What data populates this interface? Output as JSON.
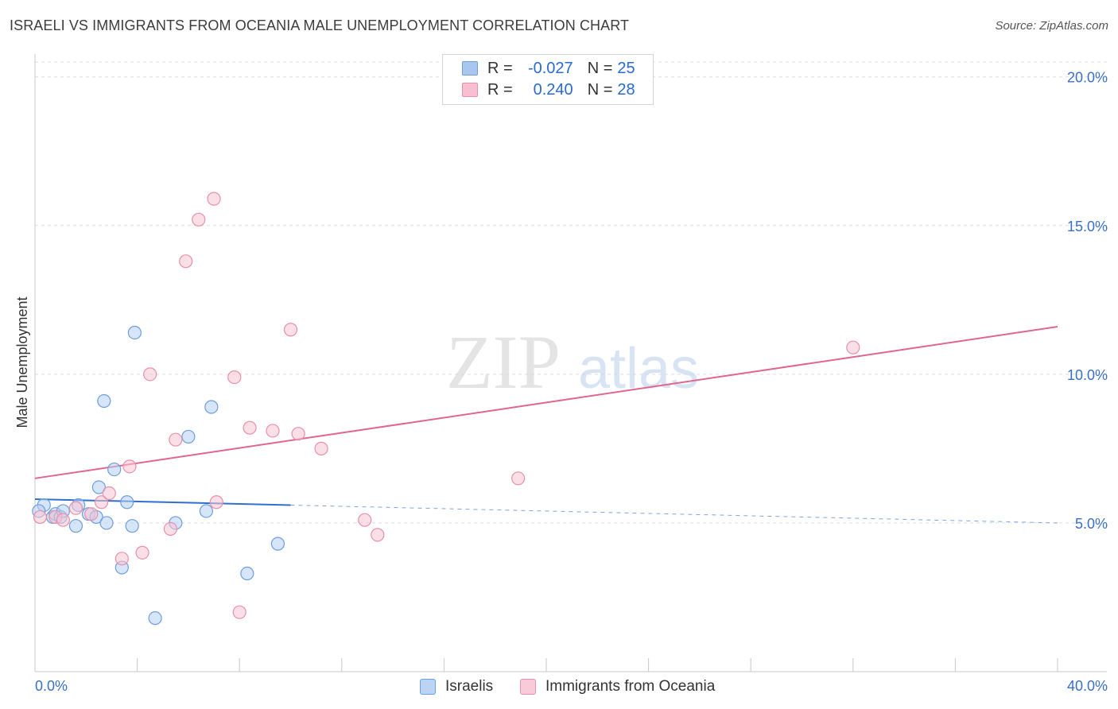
{
  "title": "ISRAELI VS IMMIGRANTS FROM OCEANIA MALE UNEMPLOYMENT CORRELATION CHART",
  "source": "Source: ZipAtlas.com",
  "watermark": {
    "zip": "ZIP",
    "atlas": "atlas"
  },
  "legend": {
    "r_label": "R =",
    "n_label": "N =",
    "rows": [
      {
        "r": "-0.027",
        "n": "25",
        "color": "#a8c6f0",
        "border": "#6d9ee0"
      },
      {
        "r": "0.240",
        "n": "28",
        "color": "#f8bfd0",
        "border": "#e890aa"
      }
    ]
  },
  "bottom_legend": [
    {
      "label": "Israelis",
      "color": "#bcd4f3",
      "border": "#6d9ee0"
    },
    {
      "label": "Immigrants from Oceania",
      "color": "#f9cbd9",
      "border": "#e890aa"
    }
  ],
  "chart_data": {
    "type": "scatter",
    "title": "ISRAELI VS IMMIGRANTS FROM OCEANIA MALE UNEMPLOYMENT CORRELATION CHART",
    "xlabel": "",
    "ylabel": "Male Unemployment",
    "xlim": [
      0,
      40
    ],
    "ylim": [
      0,
      20.5
    ],
    "x_ticks": [
      {
        "value": 0,
        "label": "0.0%"
      },
      {
        "value": 40,
        "label": "40.0%"
      }
    ],
    "y_ticks": [
      {
        "value": 5,
        "label": "5.0%"
      },
      {
        "value": 10,
        "label": "10.0%"
      },
      {
        "value": 15,
        "label": "15.0%"
      },
      {
        "value": 20,
        "label": "20.0%"
      }
    ],
    "grid": true,
    "series": [
      {
        "name": "Israelis",
        "color": "#6d9ee0",
        "fill": "#b7d0f2",
        "points": [
          [
            0.35,
            5.6
          ],
          [
            0.7,
            5.2
          ],
          [
            0.8,
            5.3
          ],
          [
            1.0,
            5.2
          ],
          [
            1.1,
            5.4
          ],
          [
            1.6,
            4.9
          ],
          [
            1.7,
            5.6
          ],
          [
            2.1,
            5.3
          ],
          [
            2.4,
            5.2
          ],
          [
            2.5,
            6.2
          ],
          [
            2.7,
            9.1
          ],
          [
            2.8,
            5.0
          ],
          [
            3.1,
            6.8
          ],
          [
            3.4,
            3.5
          ],
          [
            3.6,
            5.7
          ],
          [
            3.8,
            4.9
          ],
          [
            3.9,
            11.4
          ],
          [
            4.7,
            1.8
          ],
          [
            5.5,
            5.0
          ],
          [
            6.0,
            7.9
          ],
          [
            6.7,
            5.4
          ],
          [
            6.9,
            8.9
          ],
          [
            8.3,
            3.3
          ],
          [
            9.5,
            4.3
          ],
          [
            0.15,
            5.4
          ]
        ],
        "trend": {
          "x0": 0,
          "y0": 5.8,
          "x1": 10,
          "y1": 5.6,
          "dash_to_x": 40,
          "dash_to_y": 5.0
        }
      },
      {
        "name": "Immigrants from Oceania",
        "color": "#e890aa",
        "fill": "#f8c4d3",
        "points": [
          [
            0.2,
            5.2
          ],
          [
            0.8,
            5.2
          ],
          [
            1.1,
            5.1
          ],
          [
            1.6,
            5.5
          ],
          [
            2.2,
            5.3
          ],
          [
            2.6,
            5.7
          ],
          [
            2.9,
            6.0
          ],
          [
            3.4,
            3.8
          ],
          [
            3.7,
            6.9
          ],
          [
            4.2,
            4.0
          ],
          [
            4.5,
            10.0
          ],
          [
            5.3,
            4.8
          ],
          [
            5.5,
            7.8
          ],
          [
            5.9,
            13.8
          ],
          [
            6.4,
            15.2
          ],
          [
            7.0,
            15.9
          ],
          [
            7.1,
            5.7
          ],
          [
            7.8,
            9.9
          ],
          [
            8.0,
            2.0
          ],
          [
            8.4,
            8.2
          ],
          [
            9.3,
            8.1
          ],
          [
            10.0,
            11.5
          ],
          [
            10.3,
            8.0
          ],
          [
            11.2,
            7.5
          ],
          [
            12.9,
            5.1
          ],
          [
            13.4,
            4.6
          ],
          [
            18.9,
            6.5
          ],
          [
            32.0,
            10.9
          ]
        ],
        "trend": {
          "x0": 0,
          "y0": 6.5,
          "x1": 40,
          "y1": 11.6
        }
      }
    ]
  }
}
